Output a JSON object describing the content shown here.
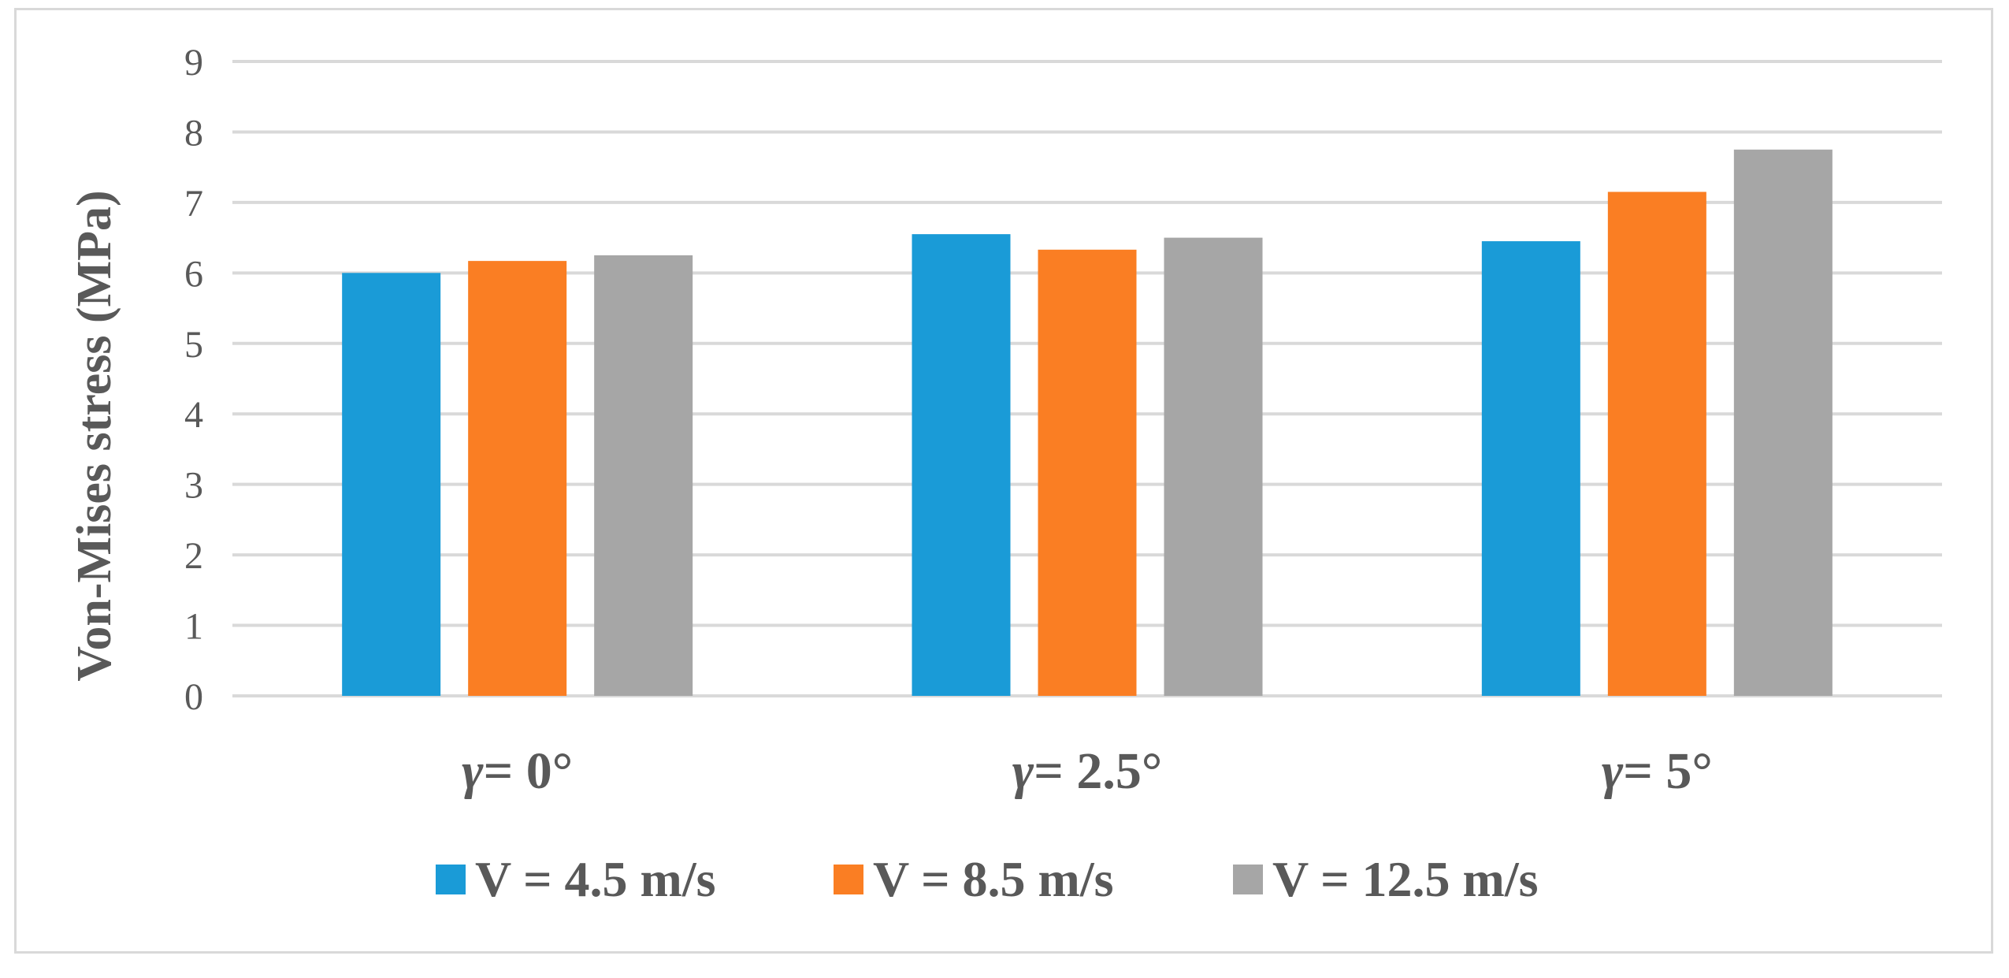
{
  "chart_data": {
    "type": "bar",
    "title": "",
    "xlabel": "",
    "ylabel": "Von-Mises stress  (MPa)",
    "categories": [
      {
        "symbol": "γ",
        "rest": "= 0°"
      },
      {
        "symbol": "γ",
        "rest": "= 2.5°"
      },
      {
        "symbol": "γ",
        "rest": "= 5°"
      }
    ],
    "series": [
      {
        "name": "V = 4.5 m/s",
        "color": "#1A9BD7",
        "values": [
          6.0,
          6.55,
          6.45
        ]
      },
      {
        "name": "V = 8.5 m/s",
        "color": "#FA7E23",
        "values": [
          6.17,
          6.33,
          7.15
        ]
      },
      {
        "name": "V = 12.5 m/s",
        "color": "#A6A6A6",
        "values": [
          6.25,
          6.5,
          7.75
        ]
      }
    ],
    "ylim": [
      0,
      9
    ],
    "yticks": [
      "0",
      "1",
      "2",
      "3",
      "4",
      "5",
      "6",
      "7",
      "8",
      "9"
    ],
    "grid": true,
    "gridColor": "#D9D9D9",
    "legend": "bottom"
  }
}
